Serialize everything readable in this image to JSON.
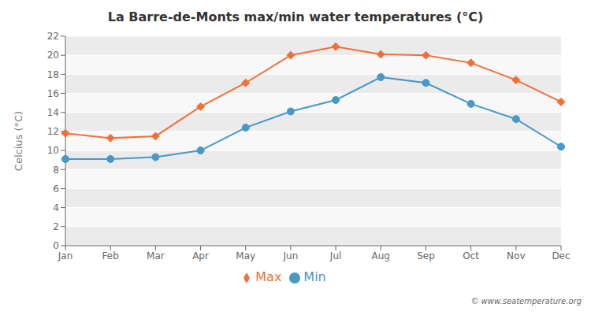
{
  "chart_data": {
    "type": "line",
    "title": "La Barre-de-Monts max/min water temperatures (°C)",
    "categories": [
      "Jan",
      "Feb",
      "Mar",
      "Apr",
      "May",
      "Jun",
      "Jul",
      "Aug",
      "Sep",
      "Oct",
      "Nov",
      "Dec"
    ],
    "series": [
      {
        "name": "Max",
        "color": "#f07038",
        "marker": "diamond",
        "values": [
          11.8,
          11.3,
          11.5,
          14.6,
          17.1,
          20.0,
          20.9,
          20.1,
          20.0,
          19.2,
          17.4,
          15.1
        ]
      },
      {
        "name": "Min",
        "color": "#4898c8",
        "marker": "circle",
        "values": [
          9.1,
          9.1,
          9.3,
          10.0,
          12.4,
          14.1,
          15.3,
          17.7,
          17.1,
          14.9,
          13.3,
          10.4
        ]
      }
    ],
    "ylabel": "Celcius (°C)",
    "ylim": [
      0,
      22
    ],
    "yticks": [
      0,
      2,
      4,
      6,
      8,
      10,
      12,
      14,
      16,
      18,
      20,
      22
    ],
    "grid": true,
    "legend": "bottom",
    "annotations": [
      "© www.seatemperature.org"
    ]
  }
}
